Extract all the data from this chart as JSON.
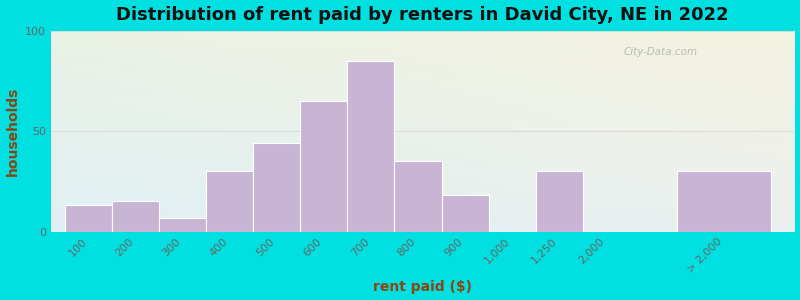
{
  "title": "Distribution of rent paid by renters in David City, NE in 2022",
  "xlabel": "rent paid ($)",
  "ylabel": "households",
  "bar_color": "#c8b4d4",
  "bar_edgecolor": "#ffffff",
  "background_outer": "#00e0e0",
  "ylim": [
    0,
    100
  ],
  "yticks": [
    0,
    50,
    100
  ],
  "watermark": "City-Data.com",
  "title_fontsize": 13,
  "axis_label_fontsize": 10,
  "tick_fontsize": 8,
  "label_color": "#8b4513",
  "tick_color": "#666666",
  "categories": [
    "100",
    "200",
    "300",
    "400",
    "500",
    "600",
    "700",
    "800",
    "900",
    "1,000",
    "1,250",
    "2,000",
    "> 2,000"
  ],
  "values": [
    13,
    15,
    7,
    30,
    44,
    65,
    85,
    35,
    18,
    0,
    30,
    0,
    30
  ],
  "bar_lefts": [
    0,
    1,
    2,
    3,
    4,
    5,
    6,
    7,
    8,
    9,
    10,
    11,
    13
  ],
  "bar_widths": [
    1,
    1,
    1,
    1,
    1,
    1,
    1,
    1,
    1,
    0,
    1,
    0,
    2
  ],
  "xlim": [
    -0.3,
    15.5
  ],
  "grid_color": "#d0d0d0",
  "has_grid": true
}
